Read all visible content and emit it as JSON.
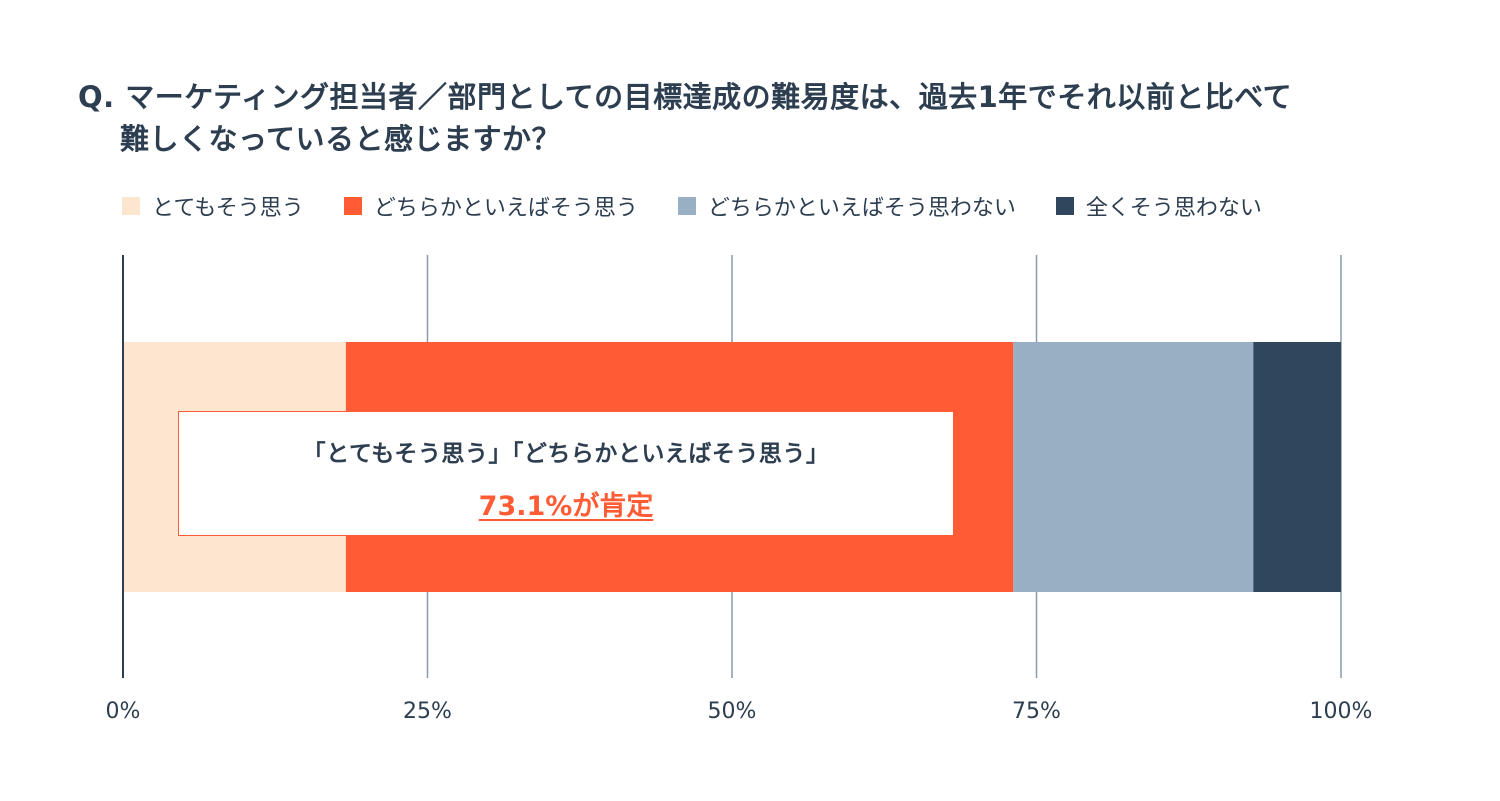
{
  "title": {
    "line1": "Q. マーケティング担当者／部門としての目標達成の難易度は、過去1年でそれ以前と比べて",
    "line2": "難しくなっていると感じますか？"
  },
  "callout": {
    "line1": "「とてもそう思う」「どちらかといえばそう思う」",
    "line2": "73.1%が肯定"
  },
  "colors": {
    "grid": "#8a9bab",
    "axis": "#2d3e50",
    "text": "#2d3e50",
    "accent": "#ff5c35"
  },
  "chart_data": {
    "type": "bar",
    "orientation": "horizontal",
    "stacked": true,
    "normalized": true,
    "xlim": [
      0,
      100
    ],
    "xticks": [
      0,
      25,
      50,
      75,
      100
    ],
    "xtick_labels": [
      "0%",
      "25%",
      "50%",
      "75%",
      "100%"
    ],
    "grid": true,
    "legend_position": "top",
    "categories": [
      ""
    ],
    "series": [
      {
        "name": "とてもそう思う",
        "values": [
          18.3
        ],
        "color": "#fce6cf"
      },
      {
        "name": "どちらかといえばそう思う",
        "values": [
          54.8
        ],
        "color": "#ff5c35"
      },
      {
        "name": "どちらかといえばそう思わない",
        "values": [
          19.7
        ],
        "color": "#99afc4"
      },
      {
        "name": "全くそう思わない",
        "values": [
          7.2
        ],
        "color": "#2f465c"
      }
    ]
  }
}
